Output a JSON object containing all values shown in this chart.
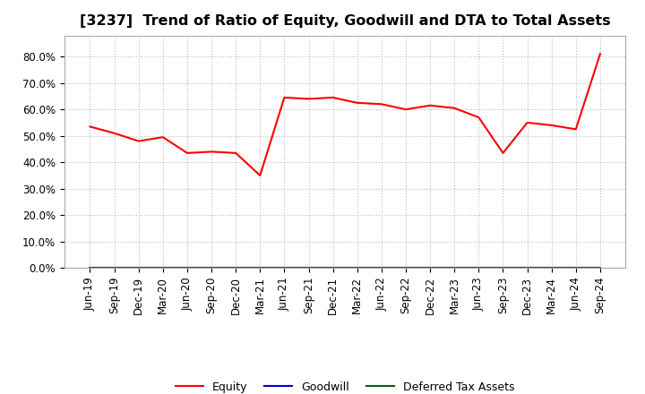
{
  "title": "[3237]  Trend of Ratio of Equity, Goodwill and DTA to Total Assets",
  "x_labels": [
    "Jun-19",
    "Sep-19",
    "Dec-19",
    "Mar-20",
    "Jun-20",
    "Sep-20",
    "Dec-20",
    "Mar-21",
    "Jun-21",
    "Sep-21",
    "Dec-21",
    "Mar-22",
    "Jun-22",
    "Sep-22",
    "Dec-22",
    "Mar-23",
    "Jun-23",
    "Sep-23",
    "Dec-23",
    "Mar-24",
    "Jun-24",
    "Sep-24"
  ],
  "equity": [
    53.5,
    51.0,
    48.0,
    49.5,
    43.5,
    44.0,
    43.5,
    35.0,
    64.5,
    64.0,
    64.5,
    62.5,
    62.0,
    60.0,
    61.5,
    60.5,
    57.0,
    43.5,
    55.0,
    54.0,
    52.5,
    81.0
  ],
  "goodwill": [
    0,
    0,
    0,
    0,
    0,
    0,
    0,
    0,
    0,
    0,
    0,
    0,
    0,
    0,
    0,
    0,
    0,
    0,
    0,
    0,
    0,
    0
  ],
  "dta": [
    0,
    0,
    0,
    0,
    0,
    0,
    0,
    0,
    0,
    0,
    0,
    0,
    0,
    0,
    0,
    0,
    0,
    0,
    0,
    0,
    0,
    0
  ],
  "equity_color": "#FF0000",
  "goodwill_color": "#0000CC",
  "dta_color": "#006600",
  "ylim": [
    0,
    88
  ],
  "yticks": [
    0,
    10,
    20,
    30,
    40,
    50,
    60,
    70,
    80
  ],
  "background_color": "#FFFFFF",
  "grid_color": "#BBBBBB",
  "title_fontsize": 11.5,
  "legend_labels": [
    "Equity",
    "Goodwill",
    "Deferred Tax Assets"
  ]
}
